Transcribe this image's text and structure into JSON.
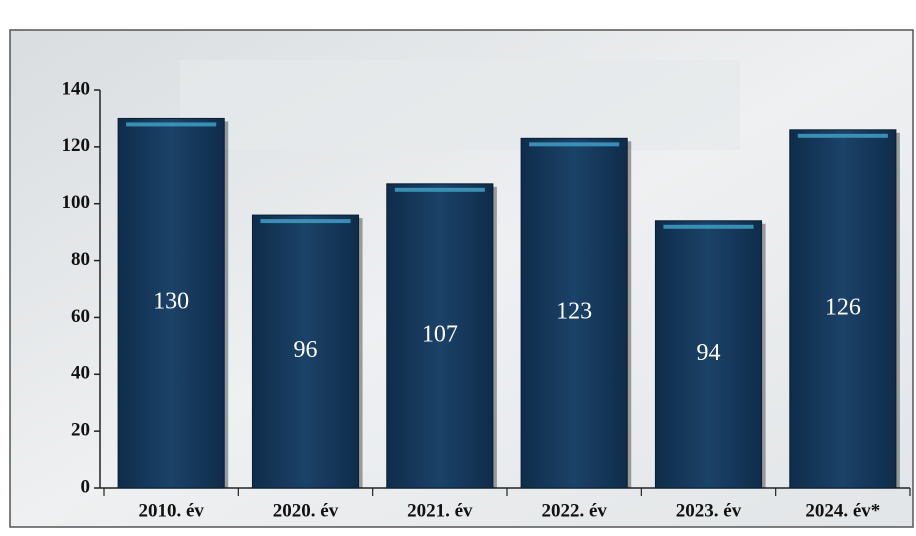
{
  "chart_data": {
    "type": "bar",
    "categories": [
      "2010. év",
      "2020. év",
      "2021. év",
      "2022. év",
      "2023. év",
      "2024. év*"
    ],
    "values": [
      130,
      96,
      107,
      123,
      94,
      126
    ],
    "color": "#163a5e",
    "ylim": [
      0,
      140
    ],
    "yticks": [
      0,
      20,
      40,
      60,
      80,
      100,
      120,
      140
    ]
  }
}
